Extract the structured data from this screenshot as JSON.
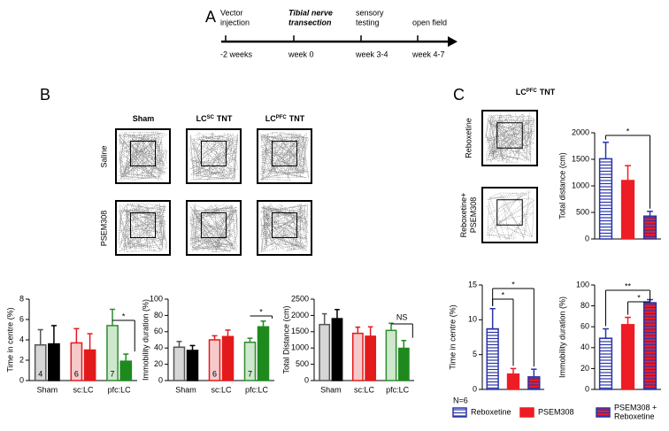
{
  "panel_labels": [
    "A",
    "B",
    "C"
  ],
  "timeline": {
    "events": [
      {
        "top": [
          "Vector",
          "injection"
        ],
        "bottom": "-2 weeks"
      },
      {
        "top": [
          "Tibial nerve",
          "transection"
        ],
        "bottom": "week 0",
        "emphasis": true
      },
      {
        "top": [
          "sensory",
          "testing"
        ],
        "bottom": "week 3-4"
      },
      {
        "top": [
          "open field"
        ],
        "bottom": "week 4-7"
      }
    ]
  },
  "open_field": {
    "columns": [
      {
        "label": "Sham"
      },
      {
        "label": "LC",
        "sup": "SC",
        "tail": "TNT"
      },
      {
        "label": "LC",
        "sup": "PFC",
        "tail": "TNT"
      }
    ],
    "rows": [
      "Saline",
      "PSEM308"
    ],
    "c_title": {
      "label": "LC",
      "sup": "PFC",
      "tail": "TNT"
    },
    "c_rows": [
      [
        "Reboxetine"
      ],
      [
        "Reboxetine+",
        "PSEM308"
      ]
    ]
  },
  "chart_data": [
    {
      "type": "bar",
      "ylabel": "Time in centre (%)",
      "categories": [
        "Sham",
        "sc:LC",
        "pfc:LC"
      ],
      "ylim": [
        0,
        8
      ],
      "yticks": [
        0,
        2,
        4,
        6,
        8
      ],
      "series": [
        {
          "values": [
            3.5,
            3.7,
            5.4
          ],
          "errors": [
            1.5,
            1.4,
            1.6
          ],
          "fills": [
            "#d6d6d6",
            "#f6caca",
            "#cde8cd"
          ],
          "colors": [
            "#555555",
            "#e31a1c",
            "#2e8b2e"
          ]
        },
        {
          "values": [
            3.6,
            3.0,
            1.9
          ],
          "errors": [
            1.8,
            1.6,
            0.7
          ],
          "colors": [
            "#000000",
            "#e31a1c",
            "#1e8a1e"
          ]
        }
      ],
      "n_labels": [
        "4",
        "6",
        "7"
      ],
      "annotations": [
        "*"
      ]
    },
    {
      "type": "bar",
      "ylabel": "Immobility duration (%)",
      "categories": [
        "Sham",
        "sc:LC",
        "pfc:LC"
      ],
      "ylim": [
        0,
        100
      ],
      "yticks": [
        0,
        20,
        40,
        60,
        80,
        100
      ],
      "series": [
        {
          "values": [
            41,
            50,
            47
          ],
          "errors": [
            7,
            5,
            5
          ],
          "fills": [
            "#d6d6d6",
            "#f6caca",
            "#cde8cd"
          ],
          "colors": [
            "#555555",
            "#e31a1c",
            "#2e8b2e"
          ]
        },
        {
          "values": [
            37,
            54,
            66
          ],
          "errors": [
            6,
            8,
            7
          ],
          "colors": [
            "#000000",
            "#e31a1c",
            "#1e8a1e"
          ]
        }
      ],
      "n_labels": [
        null,
        "6",
        "7"
      ],
      "annotations": [
        "*"
      ]
    },
    {
      "type": "bar",
      "ylabel": "Total Distance (cm)",
      "categories": [
        "Sham",
        "sc:LC",
        "pfc:LC"
      ],
      "ylim": [
        0,
        2500
      ],
      "yticks": [
        0,
        500,
        1000,
        1500,
        2000,
        2500
      ],
      "series": [
        {
          "values": [
            1720,
            1450,
            1540
          ],
          "errors": [
            330,
            190,
            220
          ],
          "fills": [
            "#d6d6d6",
            "#f6caca",
            "#cde8cd"
          ],
          "colors": [
            "#555555",
            "#e31a1c",
            "#2e8b2e"
          ]
        },
        {
          "values": [
            1900,
            1360,
            990
          ],
          "errors": [
            280,
            290,
            240
          ],
          "colors": [
            "#000000",
            "#e31a1c",
            "#1e8a1e"
          ]
        }
      ],
      "annotations": [
        "NS"
      ]
    },
    {
      "type": "bar",
      "ylabel": "Total distance (cm)",
      "ylim": [
        0,
        2000
      ],
      "yticks": [
        0,
        500,
        1000,
        1500,
        2000
      ],
      "values": [
        1510,
        1100,
        430
      ],
      "errors": [
        310,
        280,
        90
      ],
      "annotations": [
        "*"
      ]
    },
    {
      "type": "bar",
      "ylabel": "Time in centre (%)",
      "ylim": [
        0,
        15
      ],
      "yticks": [
        0,
        5,
        10,
        15
      ],
      "values": [
        8.7,
        2.2,
        1.8
      ],
      "errors": [
        2.9,
        0.8,
        1.1
      ],
      "annotations": [
        "*",
        "*"
      ]
    },
    {
      "type": "bar",
      "ylabel": "Immobility duration (%)",
      "ylim": [
        0,
        100
      ],
      "yticks": [
        0,
        20,
        40,
        60,
        80,
        100
      ],
      "values": [
        49,
        62,
        83
      ],
      "errors": [
        9,
        7,
        3
      ],
      "annotations": [
        "**",
        "*"
      ]
    }
  ],
  "legend": {
    "note": "N=6",
    "items": [
      {
        "name": [
          "Reboxetine"
        ],
        "color": "#ffffff",
        "hatch": "#2a35a8",
        "edge": "#2a35a8"
      },
      {
        "name": [
          "PSEM308"
        ],
        "color": "#ee1c24",
        "hatch": null,
        "edge": "#ee1c24"
      },
      {
        "name": [
          "PSEM308 +",
          "Reboxetine"
        ],
        "color": "#ee1c24",
        "hatch": "#2a35a8",
        "edge": "#2a35a8"
      }
    ]
  }
}
